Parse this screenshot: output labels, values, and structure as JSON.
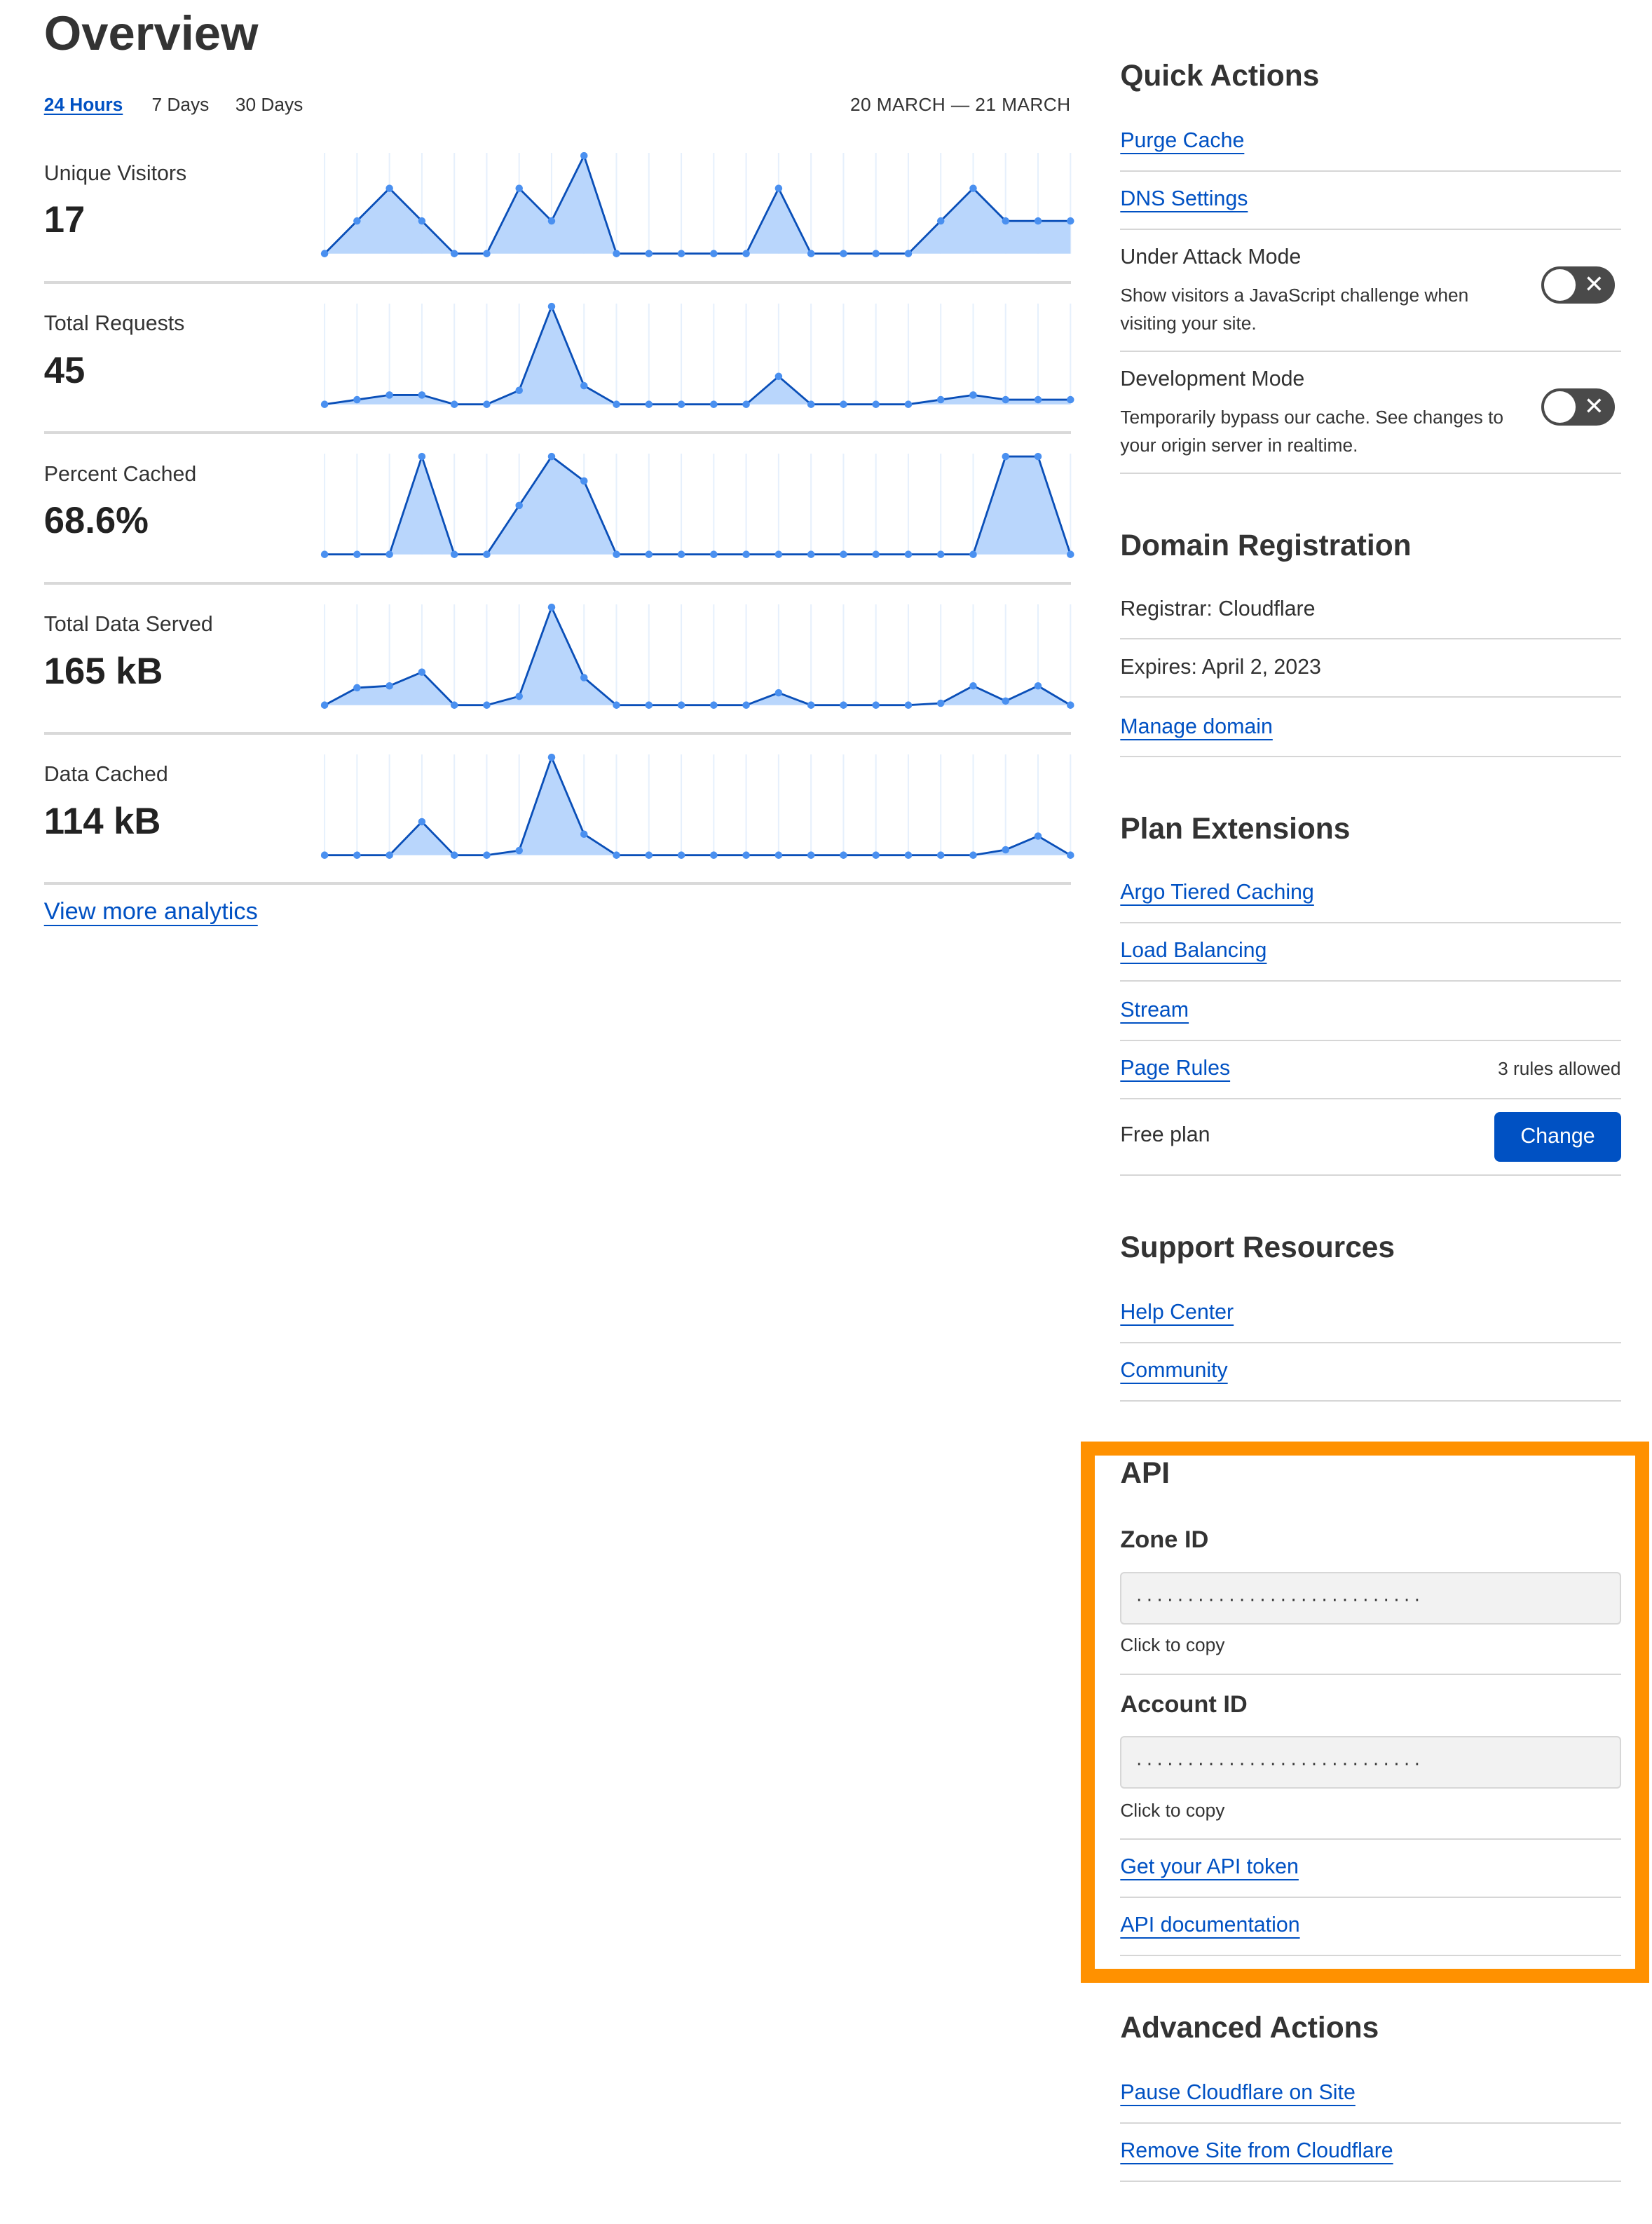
{
  "overview": {
    "title": "Overview",
    "tabs": [
      {
        "label": "24 Hours",
        "active": true
      },
      {
        "label": "7 Days",
        "active": false
      },
      {
        "label": "30 Days",
        "active": false
      }
    ],
    "date_range": "20 MARCH — 21 MARCH",
    "view_more": "View more analytics"
  },
  "colors": {
    "link": "#0051c3",
    "area_fill": "#b9d6fc",
    "line": "#0a4fb8",
    "point": "#4a90f0",
    "highlight": "#ff9100"
  },
  "chart_data": [
    {
      "type": "area",
      "label": "Unique Visitors",
      "value_text": "17",
      "x": "hours (24)",
      "values": [
        0,
        1,
        2,
        1,
        0,
        0,
        2,
        1,
        3,
        0,
        0,
        0,
        0,
        0,
        2,
        0,
        0,
        0,
        0,
        1,
        2,
        1,
        1,
        1
      ]
    },
    {
      "type": "area",
      "label": "Total Requests",
      "value_text": "45",
      "values": [
        0,
        1,
        2,
        2,
        0,
        0,
        3,
        21,
        4,
        0,
        0,
        0,
        0,
        0,
        6,
        0,
        0,
        0,
        0,
        1,
        2,
        1,
        1,
        1
      ]
    },
    {
      "type": "area",
      "label": "Percent Cached",
      "value_text": "68.6%",
      "values": [
        0,
        0,
        0,
        100,
        0,
        0,
        50,
        100,
        75,
        0,
        0,
        0,
        0,
        0,
        0,
        0,
        0,
        0,
        0,
        0,
        0,
        100,
        100,
        0
      ]
    },
    {
      "type": "area",
      "label": "Total Data Served",
      "value_text": "165 kB",
      "values": [
        0,
        11,
        12.2,
        20.9,
        0,
        0,
        5.6,
        62,
        17.4,
        0,
        0,
        0,
        0,
        0,
        7.8,
        0,
        0,
        0,
        0,
        1.2,
        12.2,
        2.6,
        12.2,
        0
      ]
    },
    {
      "type": "area",
      "label": "Data Cached",
      "value_text": "114 kB",
      "values": [
        0,
        0,
        0,
        21,
        0,
        0,
        2.9,
        61.5,
        13.2,
        0,
        0,
        0,
        0,
        0,
        0,
        0,
        0,
        0,
        0,
        0,
        0,
        3.4,
        12,
        0
      ]
    }
  ],
  "quick_actions": {
    "title": "Quick Actions",
    "purge_cache": "Purge Cache",
    "dns_settings": "DNS Settings",
    "under_attack": {
      "title": "Under Attack Mode",
      "desc": "Show visitors a JavaScript challenge when visiting your site.",
      "enabled": false
    },
    "dev_mode": {
      "title": "Development Mode",
      "desc": "Temporarily bypass our cache. See changes to your origin server in realtime.",
      "enabled": false
    },
    "toggle_off_glyph": "✕"
  },
  "domain_registration": {
    "title": "Domain Registration",
    "registrar": "Registrar: Cloudflare",
    "expires": "Expires: April 2, 2023",
    "manage": "Manage domain"
  },
  "plan_extensions": {
    "title": "Plan Extensions",
    "argo": "Argo Tiered Caching",
    "load_balancing": "Load Balancing",
    "stream": "Stream",
    "page_rules": "Page Rules",
    "page_rules_note": "3 rules allowed",
    "plan": "Free plan",
    "change": "Change"
  },
  "support": {
    "title": "Support Resources",
    "help": "Help Center",
    "community": "Community"
  },
  "api": {
    "title": "API",
    "zone_label": "Zone ID",
    "zone_value": "····························",
    "account_label": "Account ID",
    "account_value": "····························",
    "copy_hint": "Click to copy",
    "token": "Get your API token",
    "docs": "API documentation"
  },
  "advanced": {
    "title": "Advanced Actions",
    "pause": "Pause Cloudflare on Site",
    "remove": "Remove Site from Cloudflare"
  }
}
